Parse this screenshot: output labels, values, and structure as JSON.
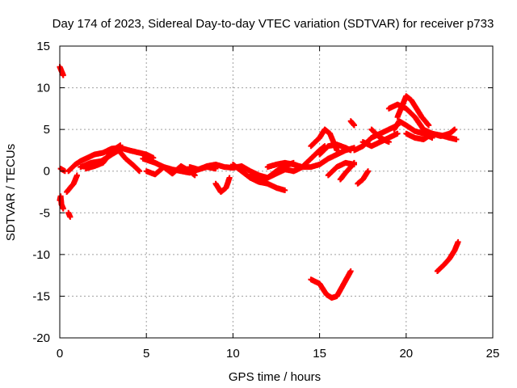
{
  "chart_data": {
    "type": "scatter",
    "title": "Day 174 of 2023, Sidereal Day-to-day VTEC variation (SDTVAR) for receiver p733",
    "xlabel": "GPS time / hours",
    "ylabel": "SDTVAR / TECUs",
    "xlim": [
      0,
      25
    ],
    "ylim": [
      -20,
      15
    ],
    "xticks": [
      0,
      5,
      10,
      15,
      20,
      25
    ],
    "yticks": [
      15,
      10,
      5,
      0,
      -5,
      -10,
      -15,
      -20
    ],
    "xtick_labels": [
      "0",
      "5",
      "10",
      "15",
      "20",
      "25"
    ],
    "ytick_labels": [
      "15",
      "10",
      "5",
      "0",
      "-5",
      "-10",
      "-15",
      "-20"
    ],
    "grid": true,
    "marker": "+",
    "series_color": "#ff0000",
    "segments": [
      {
        "name": "arc-a",
        "x": [
          0.0,
          0.1,
          0.2
        ],
        "y": [
          12.5,
          12.0,
          11.5
        ]
      },
      {
        "name": "arc-b",
        "x": [
          0.0,
          0.05,
          0.1,
          0.2
        ],
        "y": [
          -3.5,
          -3.0,
          -4.0,
          -4.5
        ]
      },
      {
        "name": "arc-c",
        "x": [
          0.5,
          0.6
        ],
        "y": [
          -5.0,
          -5.5
        ]
      },
      {
        "name": "arc-d",
        "x": [
          0.4,
          0.8,
          1.0
        ],
        "y": [
          -2.5,
          -1.5,
          -0.5
        ]
      },
      {
        "name": "arc-e",
        "x": [
          0.05,
          0.3
        ],
        "y": [
          0.3,
          0.0
        ]
      },
      {
        "name": "arc-f",
        "x": [
          0.5,
          0.9,
          1.2,
          1.6,
          2.0,
          2.5,
          3.0,
          3.5,
          4.0,
          4.6,
          5.0,
          5.4
        ],
        "y": [
          0.0,
          0.8,
          1.2,
          1.6,
          2.0,
          2.2,
          2.7,
          2.8,
          2.5,
          2.2,
          2.0,
          1.6
        ]
      },
      {
        "name": "arc-g",
        "x": [
          1.2,
          1.8,
          2.4,
          3.0,
          3.4,
          3.8,
          4.2,
          4.6
        ],
        "y": [
          0.5,
          1.0,
          1.2,
          2.0,
          2.5,
          1.5,
          0.8,
          0.0
        ]
      },
      {
        "name": "arc-h",
        "x": [
          1.5,
          2.0,
          2.5,
          3.0,
          3.5
        ],
        "y": [
          0.3,
          0.6,
          1.0,
          2.4,
          3.1
        ]
      },
      {
        "name": "arc-i",
        "x": [
          4.8,
          5.5,
          6.0,
          6.5,
          7.0,
          7.5,
          8.0,
          8.5,
          9.0
        ],
        "y": [
          1.5,
          1.0,
          0.5,
          0.2,
          0.0,
          -0.2,
          0.2,
          0.5,
          0.3
        ]
      },
      {
        "name": "arc-j",
        "x": [
          5.0,
          5.5,
          6.0,
          6.5,
          7.0,
          7.5,
          7.8
        ],
        "y": [
          0.0,
          -0.4,
          0.5,
          -0.3,
          0.6,
          0.0,
          -0.5
        ]
      },
      {
        "name": "arc-k",
        "x": [
          7.5,
          8.0,
          8.5,
          9.0,
          9.5,
          10.0,
          10.5,
          11.0,
          11.5,
          12.0,
          12.5,
          13.0,
          13.5,
          14.0
        ],
        "y": [
          0.5,
          0.2,
          0.6,
          0.8,
          0.5,
          0.4,
          0.6,
          0.0,
          -0.5,
          -0.8,
          -0.3,
          0.2,
          0.0,
          0.5
        ]
      },
      {
        "name": "arc-l",
        "x": [
          9.0,
          9.3,
          9.6,
          9.8
        ],
        "y": [
          -1.5,
          -2.5,
          -2.0,
          -0.8
        ]
      },
      {
        "name": "arc-m",
        "x": [
          10.0,
          10.5,
          11.0,
          11.5,
          12.0,
          12.5,
          13.0
        ],
        "y": [
          0.8,
          0.0,
          -0.8,
          -1.3,
          -1.5,
          -2.0,
          -2.3
        ]
      },
      {
        "name": "arc-n",
        "x": [
          11.0,
          11.5,
          12.0,
          12.5,
          13.0,
          13.5
        ],
        "y": [
          -0.5,
          -1.0,
          -0.8,
          0.0,
          0.6,
          1.0
        ]
      },
      {
        "name": "arc-o",
        "x": [
          12.0,
          12.5,
          13.0,
          13.5,
          14.0,
          14.5,
          15.0,
          15.5,
          16.0,
          16.5,
          17.0
        ],
        "y": [
          0.5,
          0.8,
          1.0,
          0.8,
          0.5,
          0.5,
          0.8,
          1.5,
          2.0,
          2.5,
          2.8
        ]
      },
      {
        "name": "arc-p",
        "x": [
          13.5,
          14.0,
          14.5,
          15.0,
          15.3
        ],
        "y": [
          0.0,
          0.5,
          1.5,
          2.5,
          3.0
        ]
      },
      {
        "name": "arc-q",
        "x": [
          14.5,
          15.0,
          15.3,
          15.6,
          16.0
        ],
        "y": [
          3.0,
          4.0,
          5.0,
          4.5,
          2.5
        ]
      },
      {
        "name": "arc-r",
        "x": [
          15.0,
          15.5,
          16.0,
          16.5,
          16.8
        ],
        "y": [
          2.0,
          3.0,
          3.2,
          2.8,
          2.5
        ]
      },
      {
        "name": "arc-s",
        "x": [
          15.5,
          16.0,
          16.5,
          17.0
        ],
        "y": [
          -0.5,
          0.5,
          1.0,
          0.8
        ]
      },
      {
        "name": "arc-t",
        "x": [
          16.2,
          16.5,
          16.8,
          17.0
        ],
        "y": [
          -1.0,
          -0.2,
          0.5,
          1.0
        ]
      },
      {
        "name": "arc-u",
        "x": [
          16.8,
          17.0
        ],
        "y": [
          6.0,
          5.5
        ]
      },
      {
        "name": "arc-v",
        "x": [
          17.0,
          17.5,
          18.0,
          18.5,
          19.0,
          19.5
        ],
        "y": [
          2.5,
          3.0,
          4.0,
          4.5,
          5.0,
          5.5
        ]
      },
      {
        "name": "arc-w",
        "x": [
          17.2,
          17.5,
          17.8
        ],
        "y": [
          -1.5,
          -1.0,
          0.0
        ]
      },
      {
        "name": "arc-x",
        "x": [
          17.5,
          18.0,
          18.5,
          19.0,
          19.5
        ],
        "y": [
          3.5,
          3.0,
          3.5,
          4.0,
          4.5
        ]
      },
      {
        "name": "arc-y",
        "x": [
          18.0,
          18.5,
          19.0
        ],
        "y": [
          5.0,
          4.0,
          3.5
        ]
      },
      {
        "name": "arc-z",
        "x": [
          19.0,
          19.5,
          20.0,
          20.5,
          21.0,
          21.5,
          22.0,
          22.5,
          22.8
        ],
        "y": [
          7.5,
          8.0,
          7.5,
          6.5,
          5.0,
          4.5,
          4.2,
          4.5,
          5.0
        ]
      },
      {
        "name": "arc-aa",
        "x": [
          19.5,
          20.0,
          20.3,
          20.6,
          20.9,
          21.3
        ],
        "y": [
          6.5,
          9.0,
          8.5,
          7.5,
          6.5,
          5.5
        ]
      },
      {
        "name": "arc-ab",
        "x": [
          19.3,
          19.6,
          20.0,
          20.5,
          21.0,
          21.5
        ],
        "y": [
          5.0,
          6.0,
          5.5,
          4.8,
          4.5,
          4.0
        ]
      },
      {
        "name": "arc-ac",
        "x": [
          20.0,
          20.5,
          21.0,
          21.5,
          22.0,
          22.5,
          22.9
        ],
        "y": [
          4.5,
          4.0,
          3.8,
          4.5,
          4.3,
          4.0,
          3.8
        ]
      },
      {
        "name": "arc-ad",
        "x": [
          14.5,
          15.0,
          15.4,
          15.7,
          16.0,
          16.4,
          16.8
        ],
        "y": [
          -13.0,
          -13.5,
          -14.8,
          -15.2,
          -15.0,
          -13.5,
          -12.0
        ]
      },
      {
        "name": "arc-ae",
        "x": [
          21.8,
          22.2,
          22.5,
          22.8,
          23.0
        ],
        "y": [
          -12.0,
          -11.2,
          -10.5,
          -9.5,
          -8.5
        ]
      }
    ]
  }
}
